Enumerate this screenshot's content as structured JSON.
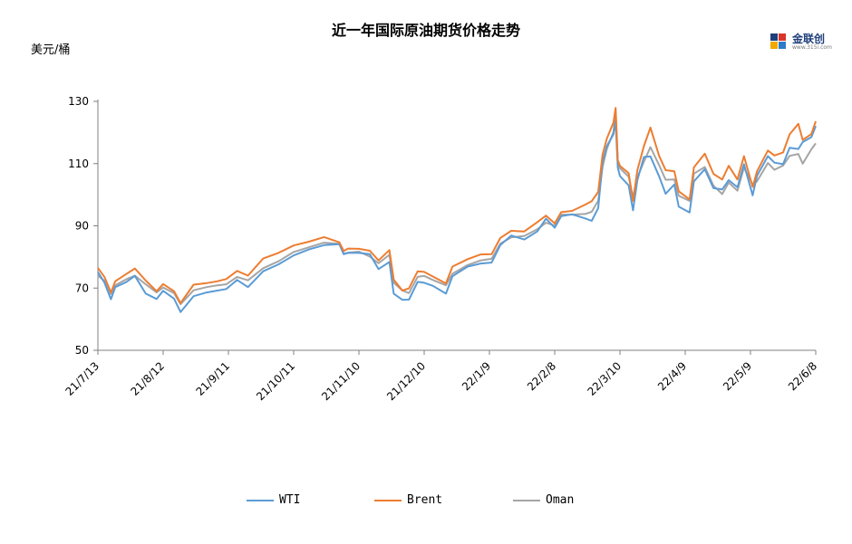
{
  "title": "近一年国际原油期货价格走势",
  "unit_label": "美元/桶",
  "logo": {
    "text": "金联创",
    "sub": "www.315i.com"
  },
  "colors": {
    "WTI": "#5b9bd5",
    "Brent": "#ed7d31",
    "Oman": "#a5a5a5"
  },
  "chart_data": {
    "type": "line",
    "title": "近一年国际原油期货价格走势",
    "ylabel": "美元/桶",
    "xlabel": "",
    "ylim": [
      50,
      130
    ],
    "yticks": [
      50,
      70,
      90,
      110,
      130
    ],
    "x_tick_labels": [
      "21/7/13",
      "21/8/12",
      "21/9/11",
      "21/10/11",
      "21/11/10",
      "21/12/10",
      "22/1/9",
      "22/2/8",
      "22/3/10",
      "22/4/9",
      "22/5/9",
      "22/6/8"
    ],
    "x_start": "2021-07-13",
    "x_end": "2022-06-08",
    "grid": false,
    "legend_position": "bottom",
    "series": [
      {
        "name": "WTI",
        "color": "#5b9bd5",
        "points": [
          [
            "2021-07-13",
            75.2
          ],
          [
            "2021-07-16",
            71.8
          ],
          [
            "2021-07-19",
            66.4
          ],
          [
            "2021-07-21",
            70.3
          ],
          [
            "2021-07-26",
            71.9
          ],
          [
            "2021-07-30",
            73.9
          ],
          [
            "2021-08-04",
            68.2
          ],
          [
            "2021-08-09",
            66.5
          ],
          [
            "2021-08-12",
            69.1
          ],
          [
            "2021-08-17",
            66.6
          ],
          [
            "2021-08-20",
            62.3
          ],
          [
            "2021-08-26",
            67.4
          ],
          [
            "2021-09-01",
            68.6
          ],
          [
            "2021-09-06",
            69.2
          ],
          [
            "2021-09-10",
            69.7
          ],
          [
            "2021-09-15",
            72.6
          ],
          [
            "2021-09-20",
            70.3
          ],
          [
            "2021-09-27",
            75.4
          ],
          [
            "2021-10-04",
            77.6
          ],
          [
            "2021-10-11",
            80.5
          ],
          [
            "2021-10-18",
            82.4
          ],
          [
            "2021-10-25",
            83.8
          ],
          [
            "2021-11-01",
            84.1
          ],
          [
            "2021-11-03",
            80.9
          ],
          [
            "2021-11-05",
            81.3
          ],
          [
            "2021-11-10",
            81.3
          ],
          [
            "2021-11-15",
            80.9
          ],
          [
            "2021-11-19",
            76.1
          ],
          [
            "2021-11-24",
            78.4
          ],
          [
            "2021-11-26",
            68.2
          ],
          [
            "2021-11-30",
            66.2
          ],
          [
            "2021-12-03",
            66.3
          ],
          [
            "2021-12-07",
            72.0
          ],
          [
            "2021-12-10",
            71.7
          ],
          [
            "2021-12-14",
            70.7
          ],
          [
            "2021-12-20",
            68.2
          ],
          [
            "2021-12-23",
            73.8
          ],
          [
            "2021-12-30",
            76.9
          ],
          [
            "2022-01-05",
            77.9
          ],
          [
            "2022-01-10",
            78.2
          ],
          [
            "2022-01-14",
            83.8
          ],
          [
            "2022-01-19",
            86.9
          ],
          [
            "2022-01-25",
            85.6
          ],
          [
            "2022-01-31",
            88.2
          ],
          [
            "2022-02-04",
            92.3
          ],
          [
            "2022-02-08",
            89.4
          ],
          [
            "2022-02-11",
            93.1
          ],
          [
            "2022-02-16",
            93.7
          ],
          [
            "2022-02-22",
            92.4
          ],
          [
            "2022-02-25",
            91.6
          ],
          [
            "2022-02-28",
            95.7
          ],
          [
            "2022-03-02",
            110.6
          ],
          [
            "2022-03-04",
            115.7
          ],
          [
            "2022-03-07",
            119.4
          ],
          [
            "2022-03-08",
            123.7
          ],
          [
            "2022-03-09",
            108.7
          ],
          [
            "2022-03-10",
            106.0
          ],
          [
            "2022-03-14",
            103.0
          ],
          [
            "2022-03-16",
            95.0
          ],
          [
            "2022-03-18",
            104.7
          ],
          [
            "2022-03-21",
            112.1
          ],
          [
            "2022-03-24",
            112.3
          ],
          [
            "2022-03-28",
            105.9
          ],
          [
            "2022-03-31",
            100.3
          ],
          [
            "2022-04-04",
            103.3
          ],
          [
            "2022-04-06",
            96.2
          ],
          [
            "2022-04-11",
            94.3
          ],
          [
            "2022-04-13",
            104.3
          ],
          [
            "2022-04-18",
            108.2
          ],
          [
            "2022-04-22",
            102.1
          ],
          [
            "2022-04-26",
            101.7
          ],
          [
            "2022-04-29",
            104.7
          ],
          [
            "2022-05-03",
            102.4
          ],
          [
            "2022-05-06",
            109.8
          ],
          [
            "2022-05-10",
            99.8
          ],
          [
            "2022-05-12",
            106.1
          ],
          [
            "2022-05-17",
            112.4
          ],
          [
            "2022-05-20",
            110.3
          ],
          [
            "2022-05-24",
            109.8
          ],
          [
            "2022-05-27",
            115.1
          ],
          [
            "2022-05-31",
            114.7
          ],
          [
            "2022-06-02",
            116.9
          ],
          [
            "2022-06-06",
            118.5
          ],
          [
            "2022-06-08",
            122.1
          ]
        ]
      },
      {
        "name": "Brent",
        "color": "#ed7d31",
        "points": [
          [
            "2021-07-13",
            76.5
          ],
          [
            "2021-07-16",
            73.6
          ],
          [
            "2021-07-19",
            68.6
          ],
          [
            "2021-07-21",
            72.2
          ],
          [
            "2021-07-26",
            74.5
          ],
          [
            "2021-07-30",
            76.3
          ],
          [
            "2021-08-04",
            72.4
          ],
          [
            "2021-08-09",
            69.0
          ],
          [
            "2021-08-12",
            71.3
          ],
          [
            "2021-08-17",
            69.0
          ],
          [
            "2021-08-20",
            65.2
          ],
          [
            "2021-08-26",
            71.1
          ],
          [
            "2021-09-01",
            71.6
          ],
          [
            "2021-09-06",
            72.2
          ],
          [
            "2021-09-10",
            72.9
          ],
          [
            "2021-09-15",
            75.5
          ],
          [
            "2021-09-20",
            74.0
          ],
          [
            "2021-09-27",
            79.5
          ],
          [
            "2021-10-04",
            81.3
          ],
          [
            "2021-10-11",
            83.7
          ],
          [
            "2021-10-18",
            84.9
          ],
          [
            "2021-10-25",
            86.4
          ],
          [
            "2021-11-01",
            84.7
          ],
          [
            "2021-11-03",
            81.9
          ],
          [
            "2021-11-05",
            82.7
          ],
          [
            "2021-11-10",
            82.6
          ],
          [
            "2021-11-15",
            82.0
          ],
          [
            "2021-11-19",
            78.9
          ],
          [
            "2021-11-24",
            82.2
          ],
          [
            "2021-11-26",
            72.7
          ],
          [
            "2021-11-30",
            69.2
          ],
          [
            "2021-12-03",
            69.9
          ],
          [
            "2021-12-07",
            75.4
          ],
          [
            "2021-12-10",
            75.2
          ],
          [
            "2021-12-14",
            73.7
          ],
          [
            "2021-12-20",
            71.5
          ],
          [
            "2021-12-23",
            76.9
          ],
          [
            "2021-12-30",
            79.3
          ],
          [
            "2022-01-05",
            80.8
          ],
          [
            "2022-01-10",
            80.9
          ],
          [
            "2022-01-14",
            86.1
          ],
          [
            "2022-01-19",
            88.4
          ],
          [
            "2022-01-25",
            88.2
          ],
          [
            "2022-01-31",
            91.2
          ],
          [
            "2022-02-04",
            93.3
          ],
          [
            "2022-02-08",
            90.8
          ],
          [
            "2022-02-11",
            94.4
          ],
          [
            "2022-02-16",
            94.8
          ],
          [
            "2022-02-22",
            96.8
          ],
          [
            "2022-02-25",
            97.9
          ],
          [
            "2022-02-28",
            100.9
          ],
          [
            "2022-03-02",
            112.9
          ],
          [
            "2022-03-04",
            118.1
          ],
          [
            "2022-03-07",
            123.2
          ],
          [
            "2022-03-08",
            127.9
          ],
          [
            "2022-03-09",
            111.1
          ],
          [
            "2022-03-10",
            109.3
          ],
          [
            "2022-03-14",
            106.9
          ],
          [
            "2022-03-16",
            98.0
          ],
          [
            "2022-03-18",
            107.9
          ],
          [
            "2022-03-21",
            115.6
          ],
          [
            "2022-03-24",
            121.6
          ],
          [
            "2022-03-28",
            112.5
          ],
          [
            "2022-03-31",
            107.9
          ],
          [
            "2022-04-04",
            107.5
          ],
          [
            "2022-04-06",
            101.1
          ],
          [
            "2022-04-11",
            98.5
          ],
          [
            "2022-04-13",
            108.8
          ],
          [
            "2022-04-18",
            113.2
          ],
          [
            "2022-04-22",
            106.7
          ],
          [
            "2022-04-26",
            104.9
          ],
          [
            "2022-04-29",
            109.3
          ],
          [
            "2022-05-03",
            104.9
          ],
          [
            "2022-05-06",
            112.4
          ],
          [
            "2022-05-10",
            102.5
          ],
          [
            "2022-05-12",
            107.5
          ],
          [
            "2022-05-17",
            114.2
          ],
          [
            "2022-05-20",
            112.6
          ],
          [
            "2022-05-24",
            113.6
          ],
          [
            "2022-05-27",
            119.4
          ],
          [
            "2022-05-31",
            122.8
          ],
          [
            "2022-06-02",
            117.6
          ],
          [
            "2022-06-06",
            119.5
          ],
          [
            "2022-06-08",
            123.6
          ]
        ]
      },
      {
        "name": "Oman",
        "color": "#a5a5a5",
        "points": [
          [
            "2021-07-13",
            74.0
          ],
          [
            "2021-07-16",
            72.3
          ],
          [
            "2021-07-19",
            68.1
          ],
          [
            "2021-07-21",
            70.9
          ],
          [
            "2021-07-26",
            72.8
          ],
          [
            "2021-07-30",
            74.0
          ],
          [
            "2021-08-04",
            71.2
          ],
          [
            "2021-08-09",
            68.6
          ],
          [
            "2021-08-12",
            70.2
          ],
          [
            "2021-08-17",
            68.4
          ],
          [
            "2021-08-20",
            64.8
          ],
          [
            "2021-08-26",
            69.3
          ],
          [
            "2021-09-01",
            70.3
          ],
          [
            "2021-09-06",
            70.9
          ],
          [
            "2021-09-10",
            71.2
          ],
          [
            "2021-09-15",
            73.6
          ],
          [
            "2021-09-20",
            72.5
          ],
          [
            "2021-09-27",
            76.4
          ],
          [
            "2021-10-04",
            78.6
          ],
          [
            "2021-10-11",
            81.6
          ],
          [
            "2021-10-18",
            83.1
          ],
          [
            "2021-10-25",
            84.6
          ],
          [
            "2021-11-01",
            84.2
          ],
          [
            "2021-11-03",
            81.0
          ],
          [
            "2021-11-05",
            81.4
          ],
          [
            "2021-11-10",
            81.7
          ],
          [
            "2021-11-15",
            80.1
          ],
          [
            "2021-11-19",
            78.0
          ],
          [
            "2021-11-24",
            80.7
          ],
          [
            "2021-11-26",
            71.7
          ],
          [
            "2021-11-30",
            69.2
          ],
          [
            "2021-12-03",
            68.4
          ],
          [
            "2021-12-07",
            73.6
          ],
          [
            "2021-12-10",
            73.9
          ],
          [
            "2021-12-14",
            72.6
          ],
          [
            "2021-12-20",
            70.9
          ],
          [
            "2021-12-23",
            74.6
          ],
          [
            "2021-12-30",
            77.4
          ],
          [
            "2022-01-05",
            78.9
          ],
          [
            "2022-01-10",
            79.4
          ],
          [
            "2022-01-14",
            84.3
          ],
          [
            "2022-01-19",
            86.3
          ],
          [
            "2022-01-25",
            86.7
          ],
          [
            "2022-01-31",
            88.9
          ],
          [
            "2022-02-04",
            91.0
          ],
          [
            "2022-02-08",
            90.1
          ],
          [
            "2022-02-11",
            93.6
          ],
          [
            "2022-02-16",
            93.6
          ],
          [
            "2022-02-22",
            93.8
          ],
          [
            "2022-02-25",
            94.5
          ],
          [
            "2022-02-28",
            98.1
          ],
          [
            "2022-03-02",
            108.9
          ],
          [
            "2022-03-04",
            114.8
          ],
          [
            "2022-03-07",
            120.1
          ],
          [
            "2022-03-08",
            126.9
          ],
          [
            "2022-03-09",
            110.2
          ],
          [
            "2022-03-10",
            108.5
          ],
          [
            "2022-03-14",
            105.8
          ],
          [
            "2022-03-16",
            99.2
          ],
          [
            "2022-03-18",
            105.6
          ],
          [
            "2022-03-21",
            110.6
          ],
          [
            "2022-03-24",
            115.3
          ],
          [
            "2022-03-28",
            109.5
          ],
          [
            "2022-03-31",
            104.8
          ],
          [
            "2022-04-04",
            104.9
          ],
          [
            "2022-04-06",
            99.7
          ],
          [
            "2022-04-11",
            98.0
          ],
          [
            "2022-04-13",
            106.8
          ],
          [
            "2022-04-18",
            108.9
          ],
          [
            "2022-04-22",
            102.9
          ],
          [
            "2022-04-26",
            100.2
          ],
          [
            "2022-04-29",
            103.9
          ],
          [
            "2022-05-03",
            101.3
          ],
          [
            "2022-05-06",
            108.7
          ],
          [
            "2022-05-10",
            103.3
          ],
          [
            "2022-05-12",
            104.3
          ],
          [
            "2022-05-17",
            110.2
          ],
          [
            "2022-05-20",
            108.0
          ],
          [
            "2022-05-24",
            109.4
          ],
          [
            "2022-05-27",
            112.5
          ],
          [
            "2022-05-31",
            113.1
          ],
          [
            "2022-06-02",
            110.0
          ],
          [
            "2022-06-06",
            114.6
          ],
          [
            "2022-06-08",
            116.5
          ]
        ]
      }
    ]
  }
}
